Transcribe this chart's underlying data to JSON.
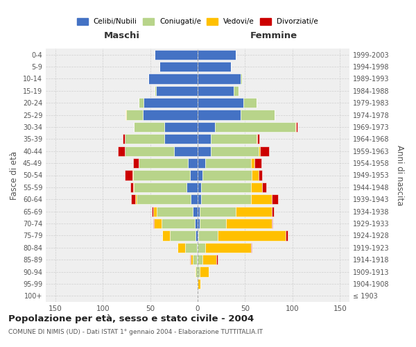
{
  "age_groups": [
    "100+",
    "95-99",
    "90-94",
    "85-89",
    "80-84",
    "75-79",
    "70-74",
    "65-69",
    "60-64",
    "55-59",
    "50-54",
    "45-49",
    "40-44",
    "35-39",
    "30-34",
    "25-29",
    "20-24",
    "15-19",
    "10-14",
    "5-9",
    "0-4"
  ],
  "birth_years": [
    "≤ 1903",
    "1904-1908",
    "1909-1913",
    "1914-1918",
    "1919-1923",
    "1924-1928",
    "1929-1933",
    "1934-1938",
    "1939-1943",
    "1944-1948",
    "1949-1953",
    "1954-1958",
    "1959-1963",
    "1964-1968",
    "1969-1973",
    "1974-1978",
    "1979-1983",
    "1984-1988",
    "1989-1993",
    "1994-1998",
    "1999-2003"
  ],
  "males": {
    "celibi": [
      0,
      0,
      0,
      1,
      1,
      2,
      3,
      5,
      7,
      12,
      8,
      10,
      25,
      35,
      35,
      58,
      57,
      44,
      52,
      40,
      45
    ],
    "coniugati": [
      0,
      0,
      2,
      4,
      12,
      27,
      35,
      38,
      57,
      55,
      60,
      52,
      52,
      42,
      32,
      17,
      5,
      1,
      0,
      0,
      0
    ],
    "vedovi": [
      0,
      0,
      1,
      2,
      8,
      8,
      8,
      4,
      2,
      1,
      1,
      0,
      0,
      0,
      0,
      1,
      0,
      0,
      0,
      0,
      0
    ],
    "divorziati": [
      0,
      0,
      0,
      1,
      0,
      0,
      1,
      1,
      4,
      3,
      8,
      6,
      7,
      2,
      0,
      0,
      0,
      0,
      0,
      0,
      0
    ]
  },
  "females": {
    "nubili": [
      0,
      0,
      0,
      0,
      0,
      1,
      2,
      2,
      4,
      4,
      5,
      8,
      14,
      14,
      18,
      45,
      48,
      38,
      45,
      35,
      40
    ],
    "coniugate": [
      0,
      0,
      2,
      5,
      8,
      20,
      28,
      38,
      52,
      52,
      52,
      48,
      50,
      48,
      85,
      36,
      14,
      5,
      2,
      0,
      0
    ],
    "vedove": [
      0,
      3,
      10,
      15,
      48,
      72,
      48,
      38,
      22,
      12,
      7,
      4,
      2,
      1,
      1,
      0,
      0,
      0,
      0,
      0,
      0
    ],
    "divorziate": [
      0,
      0,
      0,
      1,
      1,
      2,
      1,
      2,
      7,
      4,
      4,
      7,
      9,
      2,
      1,
      0,
      0,
      0,
      0,
      0,
      0
    ]
  },
  "colors": {
    "celibi": "#4472c4",
    "coniugati": "#b8d48a",
    "vedovi": "#ffc000",
    "divorziati": "#cc0000"
  },
  "title": "Popolazione per età, sesso e stato civile - 2004",
  "subtitle": "COMUNE DI NIMIS (UD) - Dati ISTAT 1° gennaio 2004 - Elaborazione TUTTITALIA.IT",
  "xlabel_left": "Maschi",
  "xlabel_right": "Femmine",
  "ylabel_left": "Fasce di età",
  "ylabel_right": "Anni di nascita",
  "xlim": 160,
  "bg_color": "#ffffff",
  "plot_bg_color": "#efefef",
  "grid_color": "#cccccc"
}
